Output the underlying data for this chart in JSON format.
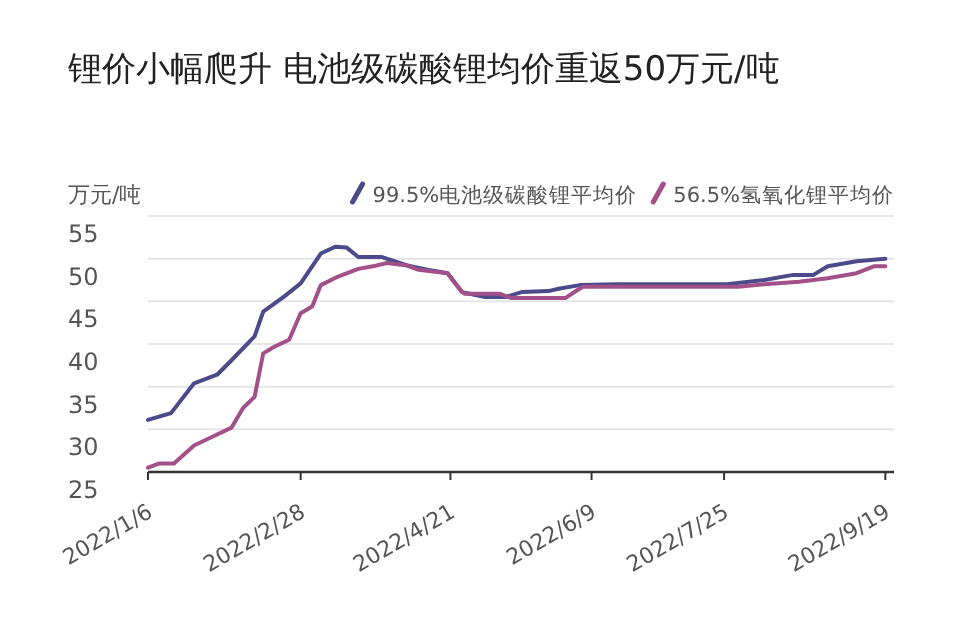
{
  "chart_data": {
    "type": "line",
    "title": "锂价小幅爬升 电池级碳酸锂均价重返50万元/吨",
    "ylabel": "万元/吨",
    "ylim": [
      25,
      55
    ],
    "yticks": [
      25,
      30,
      35,
      40,
      45,
      50,
      55
    ],
    "xlim": [
      "2022-01-06",
      "2022-09-22"
    ],
    "xticks": [
      {
        "value": "2022-01-06",
        "label": "2022/1/6"
      },
      {
        "value": "2022-02-28",
        "label": "2022/2/28"
      },
      {
        "value": "2022-04-21",
        "label": "2022/4/21"
      },
      {
        "value": "2022-06-09",
        "label": "2022/6/9"
      },
      {
        "value": "2022-07-25",
        "label": "2022/7/25"
      },
      {
        "value": "2022-09-19",
        "label": "2022/9/19"
      }
    ],
    "grid": "y",
    "legend": "top right",
    "marker": "none",
    "line_style": "solid",
    "series": [
      {
        "name": "99.5%电池级碳酸锂平均价",
        "color": "#4b4a8a",
        "x": [
          "2022-01-06",
          "2022-01-14",
          "2022-01-22",
          "2022-01-30",
          "2022-02-04",
          "2022-02-12",
          "2022-02-15",
          "2022-02-22",
          "2022-02-28",
          "2022-03-07",
          "2022-03-12",
          "2022-03-16",
          "2022-03-20",
          "2022-03-28",
          "2022-04-06",
          "2022-04-13",
          "2022-04-20",
          "2022-04-25",
          "2022-04-26",
          "2022-05-03",
          "2022-05-10",
          "2022-05-16",
          "2022-05-25",
          "2022-05-29",
          "2022-06-05",
          "2022-06-18",
          "2022-07-26",
          "2022-08-08",
          "2022-08-18",
          "2022-08-25",
          "2022-08-30",
          "2022-09-09",
          "2022-09-19"
        ],
        "values": [
          31.1,
          31.9,
          35.4,
          36.4,
          38.1,
          40.9,
          43.8,
          45.5,
          47.1,
          50.6,
          51.4,
          51.3,
          50.2,
          50.2,
          49.2,
          48.7,
          48.3,
          46.1,
          46.0,
          45.5,
          45.5,
          46.1,
          46.2,
          46.5,
          46.9,
          47.0,
          47.0,
          47.5,
          48.1,
          48.1,
          49.1,
          49.7,
          50.0
        ]
      },
      {
        "name": "56.5%氢氧化锂平均价",
        "color": "#a3508a",
        "x": [
          "2022-01-06",
          "2022-01-10",
          "2022-01-15",
          "2022-01-22",
          "2022-01-30",
          "2022-02-04",
          "2022-02-08",
          "2022-02-12",
          "2022-02-15",
          "2022-02-19",
          "2022-02-24",
          "2022-02-28",
          "2022-03-04",
          "2022-03-07",
          "2022-03-13",
          "2022-03-20",
          "2022-03-25",
          "2022-03-30",
          "2022-04-06",
          "2022-04-10",
          "2022-04-20",
          "2022-04-25",
          "2022-04-26",
          "2022-05-08",
          "2022-05-12",
          "2022-05-31",
          "2022-06-04",
          "2022-06-06",
          "2022-07-30",
          "2022-08-08",
          "2022-08-20",
          "2022-08-30",
          "2022-09-09",
          "2022-09-15",
          "2022-09-19"
        ],
        "values": [
          25.5,
          26.0,
          26.0,
          28.1,
          29.4,
          30.2,
          32.5,
          33.8,
          38.9,
          39.7,
          40.5,
          43.6,
          44.4,
          46.9,
          47.9,
          48.8,
          49.1,
          49.5,
          49.2,
          48.7,
          48.3,
          46.1,
          45.9,
          45.9,
          45.4,
          45.4,
          46.3,
          46.7,
          46.7,
          47.0,
          47.3,
          47.7,
          48.3,
          49.1,
          49.1
        ]
      }
    ]
  }
}
